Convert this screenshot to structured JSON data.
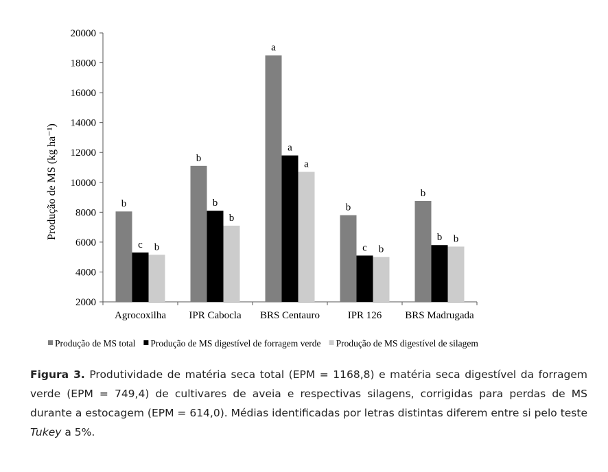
{
  "chart_data": {
    "type": "bar",
    "ylabel": "Produção de  MS (kg ha⁻¹)",
    "ylim": [
      2000,
      20000
    ],
    "yticks": [
      2000,
      4000,
      6000,
      8000,
      10000,
      12000,
      14000,
      16000,
      18000,
      20000
    ],
    "categories": [
      "Agrocoxilha",
      "IPR Cabocla",
      "BRS Centauro",
      "IPR 126",
      "BRS Madrugada"
    ],
    "grid": false,
    "legend_position": "bottom",
    "series": [
      {
        "name": "Produção de MS total",
        "color": "#808080",
        "values": [
          8050,
          11100,
          18500,
          7800,
          8750
        ],
        "letters": [
          "b",
          "b",
          "a",
          "b",
          "b"
        ]
      },
      {
        "name": "Produção de MS digestível de forragem verde",
        "color": "#000000",
        "values": [
          5300,
          8100,
          11800,
          5100,
          5800
        ],
        "letters": [
          "c",
          "b",
          "a",
          "c",
          "b"
        ]
      },
      {
        "name": "Produção de MS digestível de silagem",
        "color": "#cccccc",
        "values": [
          5150,
          7100,
          10700,
          5000,
          5700
        ],
        "letters": [
          "b",
          "b",
          "a",
          "b",
          "b"
        ]
      }
    ]
  },
  "caption": {
    "label": "Figura 3.",
    "text_before_italic": " Produtividade de matéria seca total (EPM = 1168,8) e matéria seca digestível da forragem verde (EPM = 749,4) de cultivares de aveia e respectivas silagens, corrigidas para perdas de MS durante a estocagem (EPM = 614,0). Médias identificadas por letras distintas diferem entre si pelo teste ",
    "italic": "Tukey",
    "text_after_italic": " a 5%."
  }
}
